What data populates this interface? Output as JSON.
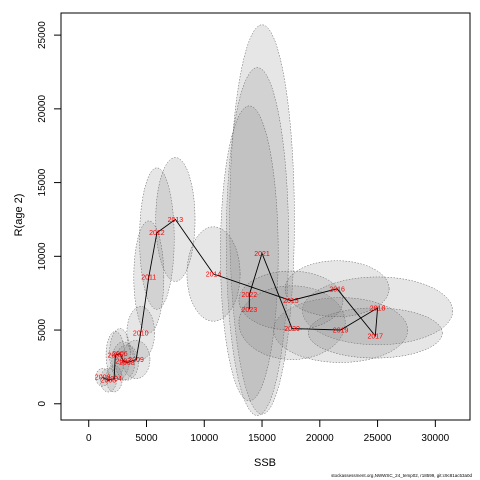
{
  "chart_data": {
    "type": "scatter",
    "xlabel": "SSB",
    "ylabel": "R(age 2)",
    "xlim": [
      -2400,
      33000
    ],
    "ylim": [
      -1100,
      26500
    ],
    "x_ticks": [
      0,
      5000,
      10000,
      15000,
      20000,
      25000,
      30000
    ],
    "y_ticks": [
      0,
      5000,
      10000,
      15000,
      20000,
      25000
    ],
    "grid": false,
    "points": [
      {
        "year": "2002",
        "ssb": 1200,
        "rec": 1800
      },
      {
        "year": "2003",
        "ssb": 1700,
        "rec": 1600
      },
      {
        "year": "2004",
        "ssb": 2200,
        "rec": 1700
      },
      {
        "year": "2005",
        "ssb": 2300,
        "rec": 3300
      },
      {
        "year": "2006",
        "ssb": 2700,
        "rec": 3400
      },
      {
        "year": "2007",
        "ssb": 3000,
        "rec": 2900
      },
      {
        "year": "2008",
        "ssb": 3300,
        "rec": 2800
      },
      {
        "year": "2009",
        "ssb": 4100,
        "rec": 3000
      },
      {
        "year": "2010",
        "ssb": 4500,
        "rec": 4800
      },
      {
        "year": "2011",
        "ssb": 5200,
        "rec": 8600
      },
      {
        "year": "2012",
        "ssb": 5900,
        "rec": 11600
      },
      {
        "year": "2013",
        "ssb": 7500,
        "rec": 12500
      },
      {
        "year": "2014",
        "ssb": 10800,
        "rec": 8800
      },
      {
        "year": "2015",
        "ssb": 17500,
        "rec": 7000
      },
      {
        "year": "2016",
        "ssb": 21500,
        "rec": 7800
      },
      {
        "year": "2017",
        "ssb": 24800,
        "rec": 4600
      },
      {
        "year": "2018",
        "ssb": 25000,
        "rec": 6500
      },
      {
        "year": "2019",
        "ssb": 21800,
        "rec": 5000
      },
      {
        "year": "2020",
        "ssb": 17600,
        "rec": 5100
      },
      {
        "year": "2021",
        "ssb": 15000,
        "rec": 10200
      },
      {
        "year": "2022",
        "ssb": 13900,
        "rec": 7400
      },
      {
        "year": "2023",
        "ssb": 13900,
        "rec": 6400
      }
    ],
    "uncertainty_ellipses": [
      {
        "year": "2002",
        "cx": 1200,
        "cy": 1800,
        "rx": 600,
        "ry": 600
      },
      {
        "year": "2003",
        "cx": 1700,
        "cy": 1600,
        "rx": 700,
        "ry": 800
      },
      {
        "year": "2004",
        "cx": 2200,
        "cy": 1700,
        "rx": 700,
        "ry": 900
      },
      {
        "year": "2005",
        "cx": 2300,
        "cy": 3300,
        "rx": 800,
        "ry": 1600
      },
      {
        "year": "2006",
        "cx": 2700,
        "cy": 3400,
        "rx": 900,
        "ry": 1700
      },
      {
        "year": "2007",
        "cx": 3000,
        "cy": 2900,
        "rx": 1000,
        "ry": 1300
      },
      {
        "year": "2008",
        "cx": 3300,
        "cy": 2800,
        "rx": 1000,
        "ry": 1200
      },
      {
        "year": "2009",
        "cx": 4100,
        "cy": 3000,
        "rx": 1200,
        "ry": 1300
      },
      {
        "year": "2010",
        "cx": 4500,
        "cy": 4800,
        "rx": 1200,
        "ry": 1800
      },
      {
        "year": "2011",
        "cx": 5200,
        "cy": 8600,
        "rx": 1300,
        "ry": 3800
      },
      {
        "year": "2012",
        "cx": 5900,
        "cy": 11200,
        "rx": 1500,
        "ry": 4800
      },
      {
        "year": "2013",
        "cx": 7500,
        "cy": 12500,
        "rx": 1700,
        "ry": 4200
      },
      {
        "year": "2014",
        "cx": 10800,
        "cy": 8800,
        "rx": 2300,
        "ry": 3200
      },
      {
        "year": "2015",
        "cx": 17500,
        "cy": 7000,
        "rx": 4500,
        "ry": 2000
      },
      {
        "year": "2016",
        "cx": 21500,
        "cy": 7800,
        "rx": 4500,
        "ry": 1900
      },
      {
        "year": "2017",
        "cx": 24800,
        "cy": 4800,
        "rx": 5800,
        "ry": 1700
      },
      {
        "year": "2018",
        "cx": 25000,
        "cy": 6300,
        "rx": 6500,
        "ry": 2300
      },
      {
        "year": "2019",
        "cx": 21800,
        "cy": 5000,
        "rx": 5800,
        "ry": 2200
      },
      {
        "year": "2020",
        "cx": 17600,
        "cy": 5500,
        "rx": 4600,
        "ry": 2500
      },
      {
        "year": "2021",
        "cx": 15000,
        "cy": 12500,
        "rx": 2800,
        "ry": 13200
      },
      {
        "year": "2022",
        "cx": 14600,
        "cy": 11000,
        "rx": 2700,
        "ry": 11800
      },
      {
        "year": "2023",
        "cx": 13900,
        "cy": 10200,
        "rx": 2500,
        "ry": 10000
      }
    ]
  },
  "footer_note": "stockassessment.org,NWWSC_24_temp02, r18599, git:c9c81ac53a0d"
}
